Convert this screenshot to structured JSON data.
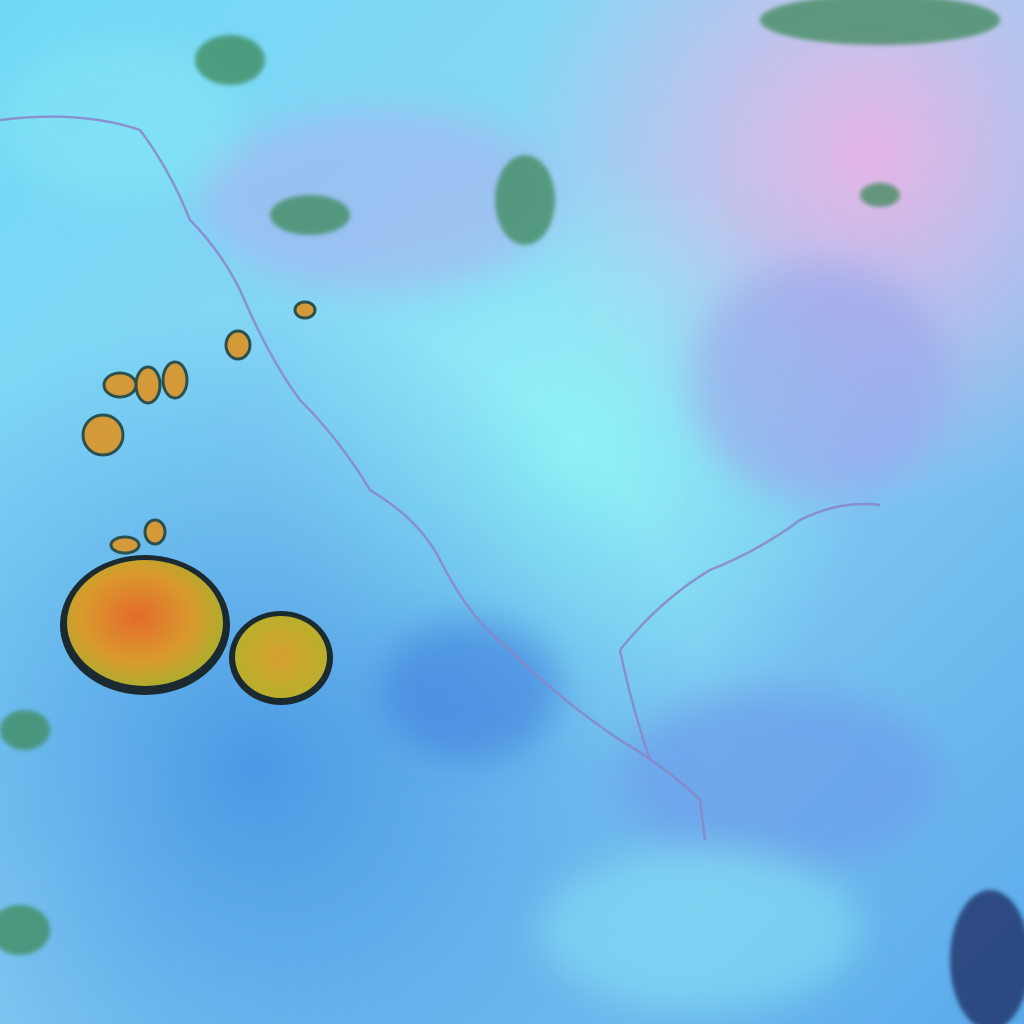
{
  "image": {
    "kind": "false-color satellite image",
    "colors": {
      "base_blue": "#4aaee8",
      "cyan": "#6ff2f5",
      "lavender": "#a7b6f0",
      "pink": "#e9b5e5",
      "deep_blue": "#3d8ae0",
      "river": "#8a86c8",
      "blob_orange": "#e27a2a",
      "blob_olive": "#b5b02a",
      "blob_edge": "#1a2a30",
      "vegetation_green": "#3e8a5a"
    }
  }
}
